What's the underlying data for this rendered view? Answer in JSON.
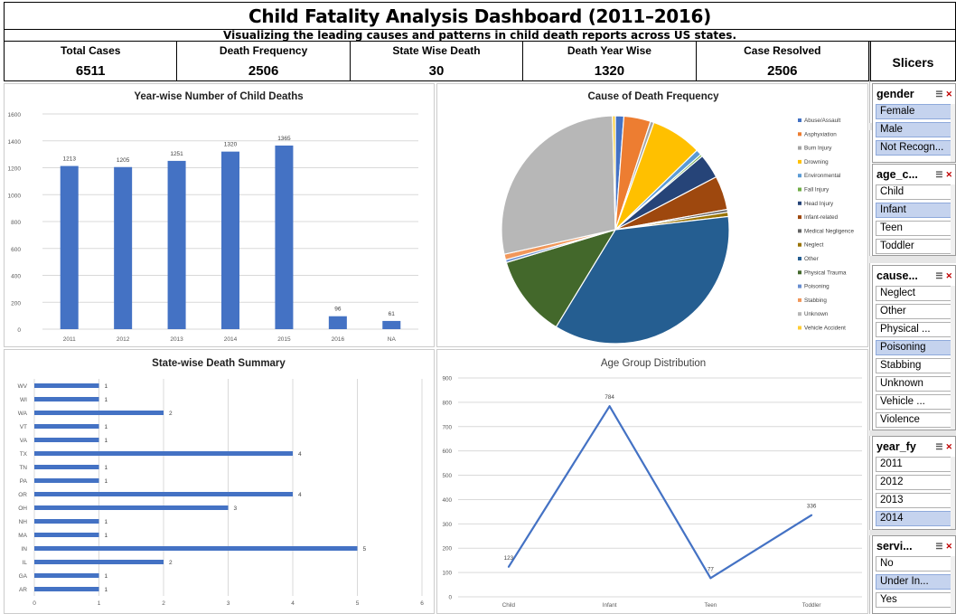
{
  "header": {
    "title": "Child Fatality Analysis Dashboard (2011–2016)",
    "subtitle": "Visualizing the leading causes and patterns in child death reports across US states."
  },
  "kpis": [
    {
      "label": "Total Cases",
      "value": "6511"
    },
    {
      "label": "Death Frequency",
      "value": "2506"
    },
    {
      "label": "State Wise Death",
      "value": "30"
    },
    {
      "label": "Death Year Wise",
      "value": "1320"
    },
    {
      "label": "Case Resolved",
      "value": "2506"
    }
  ],
  "slicers_header": "Slicers",
  "slicers": [
    {
      "title": "gender",
      "items": [
        {
          "label": "Female",
          "selected": true
        },
        {
          "label": "Male",
          "selected": true
        },
        {
          "label": "Not Recogn...",
          "selected": true
        }
      ]
    },
    {
      "title": "age_c...",
      "items": [
        {
          "label": "Child",
          "selected": false
        },
        {
          "label": "Infant",
          "selected": true
        },
        {
          "label": "Teen",
          "selected": false
        },
        {
          "label": "Toddler",
          "selected": false
        }
      ]
    },
    {
      "title": "cause...",
      "items": [
        {
          "label": "Neglect",
          "selected": false
        },
        {
          "label": "Other",
          "selected": false
        },
        {
          "label": "Physical ...",
          "selected": false
        },
        {
          "label": "Poisoning",
          "selected": true
        },
        {
          "label": "Stabbing",
          "selected": false
        },
        {
          "label": "Unknown",
          "selected": false
        },
        {
          "label": "Vehicle ...",
          "selected": false
        },
        {
          "label": "Violence",
          "selected": false
        }
      ]
    },
    {
      "title": "year_fy",
      "items": [
        {
          "label": "2011",
          "selected": false
        },
        {
          "label": "2012",
          "selected": false
        },
        {
          "label": "2013",
          "selected": false
        },
        {
          "label": "2014",
          "selected": true
        }
      ]
    },
    {
      "title": "servi...",
      "items": [
        {
          "label": "No",
          "selected": false
        },
        {
          "label": "Under In...",
          "selected": true
        },
        {
          "label": "Yes",
          "selected": false
        }
      ]
    }
  ],
  "chart_data": [
    {
      "type": "bar",
      "title": "Year-wise Number of Child Deaths",
      "categories": [
        "2011",
        "2012",
        "2013",
        "2014",
        "2015",
        "2016",
        "NA"
      ],
      "values": [
        1213,
        1205,
        1251,
        1320,
        1365,
        96,
        61
      ],
      "ylim": [
        0,
        1600
      ],
      "yticks": [
        0,
        200,
        400,
        600,
        800,
        1000,
        1200,
        1400,
        1600
      ],
      "color": "#4472c4",
      "grid": true
    },
    {
      "type": "pie",
      "title": "Cause of Death Frequency",
      "legend_position": "right",
      "slices": [
        {
          "label": "Abuse/Assault",
          "value": 1.2,
          "color": "#4472c4"
        },
        {
          "label": "Asphyxiation",
          "value": 3.8,
          "color": "#ed7d31"
        },
        {
          "label": "Burn Injury",
          "value": 0.5,
          "color": "#a5a5a5"
        },
        {
          "label": "Drowning",
          "value": 7.2,
          "color": "#ffc000"
        },
        {
          "label": "Environmental",
          "value": 0.8,
          "color": "#5b9bd5"
        },
        {
          "label": "Fall Injury",
          "value": 0.3,
          "color": "#70ad47"
        },
        {
          "label": "Head Injury",
          "value": 3.5,
          "color": "#264478"
        },
        {
          "label": "Infant-related",
          "value": 4.8,
          "color": "#9e480e"
        },
        {
          "label": "Medical Negligence",
          "value": 0.4,
          "color": "#636363"
        },
        {
          "label": "Neglect",
          "value": 0.6,
          "color": "#997300"
        },
        {
          "label": "Other",
          "value": 35.5,
          "color": "#255e91"
        },
        {
          "label": "Physical Trauma",
          "value": 11.6,
          "color": "#43682b"
        },
        {
          "label": "Poisoning",
          "value": 0.4,
          "color": "#698ed0"
        },
        {
          "label": "Stabbing",
          "value": 0.8,
          "color": "#f1975a"
        },
        {
          "label": "Unknown",
          "value": 28.0,
          "color": "#b7b7b7"
        },
        {
          "label": "Vehicle Accident",
          "value": 0.4,
          "color": "#ffcd33"
        }
      ]
    },
    {
      "type": "bar",
      "orientation": "horizontal",
      "title": "State-wise Death Summary",
      "categories": [
        "WV",
        "WI",
        "WA",
        "VT",
        "VA",
        "TX",
        "TN",
        "PA",
        "OR",
        "OH",
        "NH",
        "MA",
        "IN",
        "IL",
        "GA",
        "AR"
      ],
      "values": [
        1,
        1,
        2,
        1,
        1,
        4,
        1,
        1,
        4,
        3,
        1,
        1,
        5,
        2,
        1,
        1
      ],
      "xlim": [
        0,
        6
      ],
      "xticks": [
        0,
        1,
        2,
        3,
        4,
        5,
        6
      ],
      "color": "#4472c4",
      "grid": true
    },
    {
      "type": "line",
      "title": "Age Group Distribution",
      "categories": [
        "Child",
        "Infant",
        "Teen",
        "Toddler"
      ],
      "values": [
        123,
        784,
        77,
        336
      ],
      "ylim": [
        0,
        900
      ],
      "yticks": [
        0,
        100,
        200,
        300,
        400,
        500,
        600,
        700,
        800,
        900
      ],
      "color": "#4472c4",
      "grid": true
    }
  ]
}
